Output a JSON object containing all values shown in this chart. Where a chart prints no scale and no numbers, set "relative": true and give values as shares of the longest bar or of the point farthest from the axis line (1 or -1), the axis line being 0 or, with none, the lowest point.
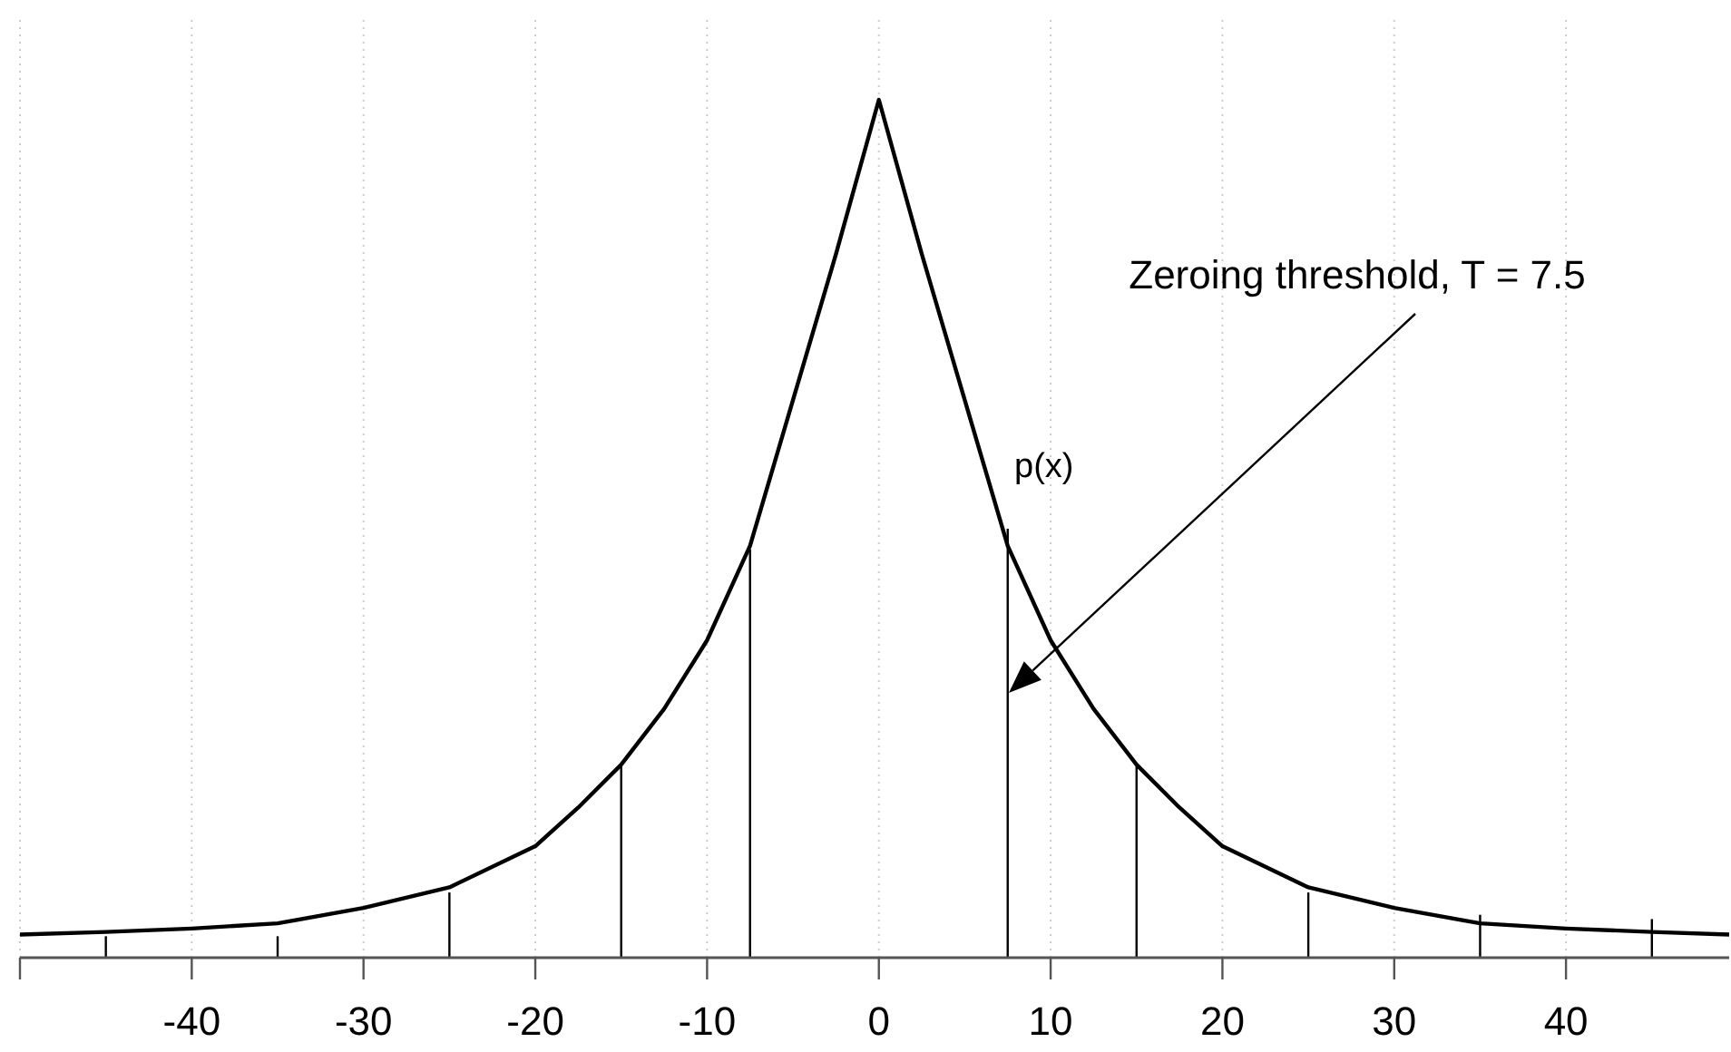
{
  "chart_data": {
    "type": "line",
    "relative": true,
    "xlim": [
      -50,
      49.5
    ],
    "xticks": [
      {
        "value": -50,
        "label": null
      },
      -40,
      -30,
      -20,
      -10,
      0,
      10,
      20,
      30,
      40
    ],
    "grid": "x",
    "tick_labels": "x",
    "line_style": "solid",
    "marker": "none",
    "series": [
      {
        "name": "p(x)",
        "color": "#000000",
        "x": [
          -50,
          -45,
          -40,
          -35,
          -30,
          -25,
          -20,
          -17.5,
          -15,
          -12.5,
          -10,
          -7.5,
          -5,
          -2.5,
          0,
          2.5,
          5,
          7.5,
          10,
          12.5,
          15,
          17.5,
          20,
          25,
          30,
          35,
          40,
          45,
          49.5
        ],
        "values": [
          0.027,
          0.03,
          0.034,
          0.04,
          0.058,
          0.082,
          0.13,
          0.175,
          0.225,
          0.29,
          0.37,
          0.48,
          0.65,
          0.82,
          1,
          0.82,
          0.65,
          0.48,
          0.37,
          0.29,
          0.225,
          0.175,
          0.13,
          0.082,
          0.058,
          0.04,
          0.034,
          0.03,
          0.027
        ]
      },
      {
        "type": "bar",
        "color": "#000000",
        "x": [
          -45,
          -35,
          -25,
          -15,
          -7.5,
          7.5,
          15,
          25,
          35,
          45
        ],
        "values": [
          0.025,
          0.025,
          0.076,
          0.225,
          0.476,
          0.5,
          0.226,
          0.076,
          0.05,
          0.045
        ]
      }
    ],
    "annotations": [
      "Zeroing threshold, T = 7.5"
    ]
  }
}
